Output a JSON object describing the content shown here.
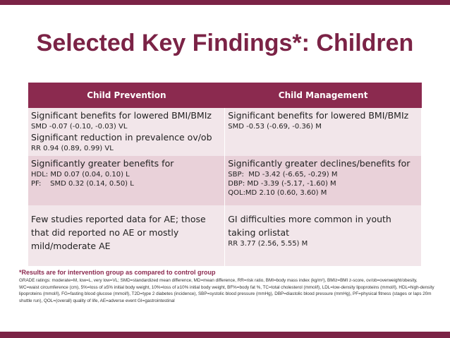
{
  "title": "Selected Key Findings*: Children",
  "table": {
    "headers": [
      "Child Prevention",
      "Child Management"
    ],
    "rows": [
      [
        [
          {
            "heading": "Significant benefits for lowered BMI/BMIz",
            "details": [
              "SMD -0.07 (-0.10, -0.03) VL"
            ]
          },
          {
            "heading": "Significant reduction in prevalence ov/ob",
            "details": [
              "RR 0.94 (0.89, 0.99) VL"
            ]
          }
        ],
        [
          {
            "heading": "Significant benefits for lowered BMI/BMIz",
            "details": [
              "SMD -0.53 (-0.69, -0.36) M"
            ]
          }
        ]
      ],
      [
        [
          {
            "heading": "Significantly greater benefits for",
            "details": [
              "HDL: MD 0.07 (0.04, 0.10) L",
              "PF:    SMD 0.32 (0.14, 0.50) L"
            ]
          }
        ],
        [
          {
            "heading": "Significantly greater declines/benefits for",
            "details": [
              "SBP:  MD -3.42 (-6.65, -0.29) M",
              "DBP: MD -3.39 (-5.17, -1.60) M",
              "QOL:MD 2.10 (0.60, 3.60) M"
            ]
          }
        ]
      ],
      [
        [
          {
            "heading": "Few studies reported data for AE; those that did reported no AE or mostly mild/moderate AE"
          }
        ],
        [
          {
            "heading": "GI difficulties more common in youth taking orlistat",
            "details": [
              "RR 3.77 (2.56, 5.55) M"
            ]
          }
        ]
      ]
    ]
  },
  "footnote": "*Results are for intervention group as compared to control group",
  "glossary": "GRADE ratings: moderate=M, low=L, very low=VL; SMD=standardized mean difference, MD=mean difference, RR=risk ratio, BMI=body mass index (kg/m²), BMIz=BMI z-score, ov/ob=overweight/obesity, WC=waist circumference (cm), 5%=loss of ≥5% initial body weight, 10%=loss of ≥10% initial body weight, BF%=body fat %, TC=total cholesterol (mmol/l), LDL=low-density lipoproteins (mmol/l), HDL=high-density lipoproteins (mmol/l), FG=fasting blood glucose (mmol/l), T2D=type 2 diabetes (incidence), SBP=systolic blood pressure (mmHg), DBP=diastolic blood pressure (mmHg), PF=physical fitness (stages or laps 20m shuttle run), QOL=(overall) quality of life, AE=adverse event GI=gastrointestinal"
}
